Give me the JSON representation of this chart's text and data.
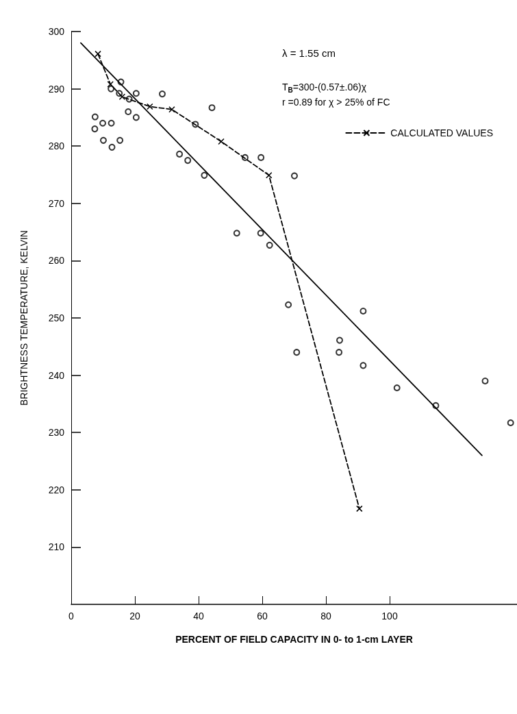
{
  "chart_data": {
    "type": "scatter",
    "xlabel": "PERCENT OF FIELD CAPACITY IN 0- to 1-cm LAYER",
    "ylabel": "BRIGHTNESS TEMPERATURE, KELVIN",
    "xlim": [
      0,
      140
    ],
    "xticks": [
      0,
      20,
      40,
      60,
      80,
      100
    ],
    "ylim": [
      200,
      300
    ],
    "yticks": [
      210,
      220,
      230,
      240,
      250,
      260,
      270,
      280,
      290,
      300
    ],
    "grid": false,
    "legend": "top right",
    "annotations": [
      "λ = 1.55 cm",
      "T$_{B}$=300-(0.57±.06)χ",
      "r =0.89 for χ > 25% of FC"
    ],
    "series": [
      {
        "color": "#000000",
        "marker": "circle",
        "x": [
          15.6,
          12.5,
          15.1,
          20.4,
          28.6,
          18.2,
          17.9,
          20.4,
          7.5,
          9.9,
          12.6,
          7.4,
          10.1,
          15.3,
          12.8,
          44.2,
          39.0,
          54.6,
          59.6,
          34.0,
          36.6,
          41.8,
          70.1,
          52.0,
          59.5,
          62.3,
          68.2,
          70.8,
          84.3,
          84.1,
          91.7,
          91.7,
          102.3,
          114.5,
          130.0,
          138.0
        ],
        "values": [
          291.2,
          290.0,
          289.2,
          289.2,
          289.1,
          288.2,
          286.0,
          285.0,
          285.1,
          284.0,
          284.0,
          283.0,
          281.0,
          281.0,
          279.8,
          286.7,
          283.8,
          278.0,
          278.0,
          278.6,
          277.5,
          274.9,
          274.8,
          264.8,
          264.8,
          262.7,
          252.3,
          244.0,
          246.1,
          244.0,
          251.2,
          241.7,
          237.8,
          234.7,
          239.0,
          231.7
        ]
      },
      {
        "type": "line",
        "color": "#000000",
        "marker": "none",
        "line_style": "solid",
        "x": [
          3,
          129
        ],
        "values": [
          298,
          226
        ]
      },
      {
        "type": "line",
        "name": "CALCULATED VALUES",
        "color": "#000000",
        "marker": "cross",
        "line_style": "dashed",
        "x": [
          8.4,
          12.3,
          16.0,
          24.7,
          31.6,
          47.1,
          62.1,
          90.5
        ],
        "values": [
          296.1,
          290.8,
          288.6,
          286.9,
          286.4,
          280.8,
          274.9,
          216.7
        ]
      }
    ]
  }
}
